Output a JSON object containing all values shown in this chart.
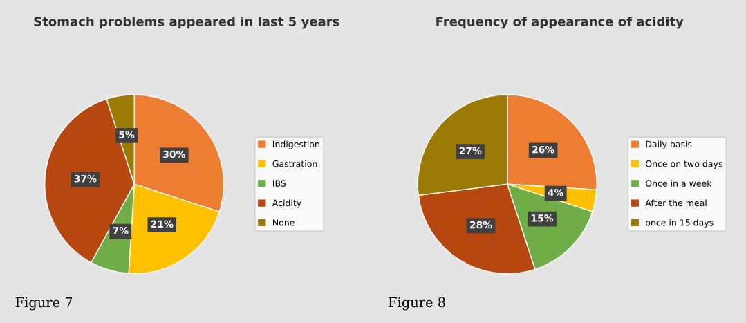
{
  "chart_data": [
    {
      "type": "pie",
      "title": "Stomach problems appeared in last 5 years",
      "categories": [
        "Indigestion",
        "Gastration",
        "IBS",
        "Acidity",
        "None"
      ],
      "values": [
        30,
        21,
        7,
        37,
        5
      ],
      "colors": [
        "#ed7d31",
        "#ffc000",
        "#70ad47",
        "#b5470f",
        "#9c7a06"
      ],
      "value_labels": [
        "30%",
        "21%",
        "7%",
        "37%",
        "5%"
      ],
      "legend": "right",
      "annotations": [
        "Figure 7"
      ]
    },
    {
      "type": "pie",
      "title": "Frequency of appearance of acidity",
      "categories": [
        "Daily basis",
        "Once on two days",
        "Once in a week",
        "After the meal",
        "once in 15 days"
      ],
      "values": [
        26,
        4,
        15,
        28,
        27
      ],
      "colors": [
        "#ed7d31",
        "#ffc000",
        "#70ad47",
        "#b5470f",
        "#9c7a06"
      ],
      "value_labels": [
        "26%",
        "4%",
        "15%",
        "28%",
        "27%"
      ],
      "legend": "right",
      "annotations": [
        "Figure 8"
      ]
    }
  ]
}
